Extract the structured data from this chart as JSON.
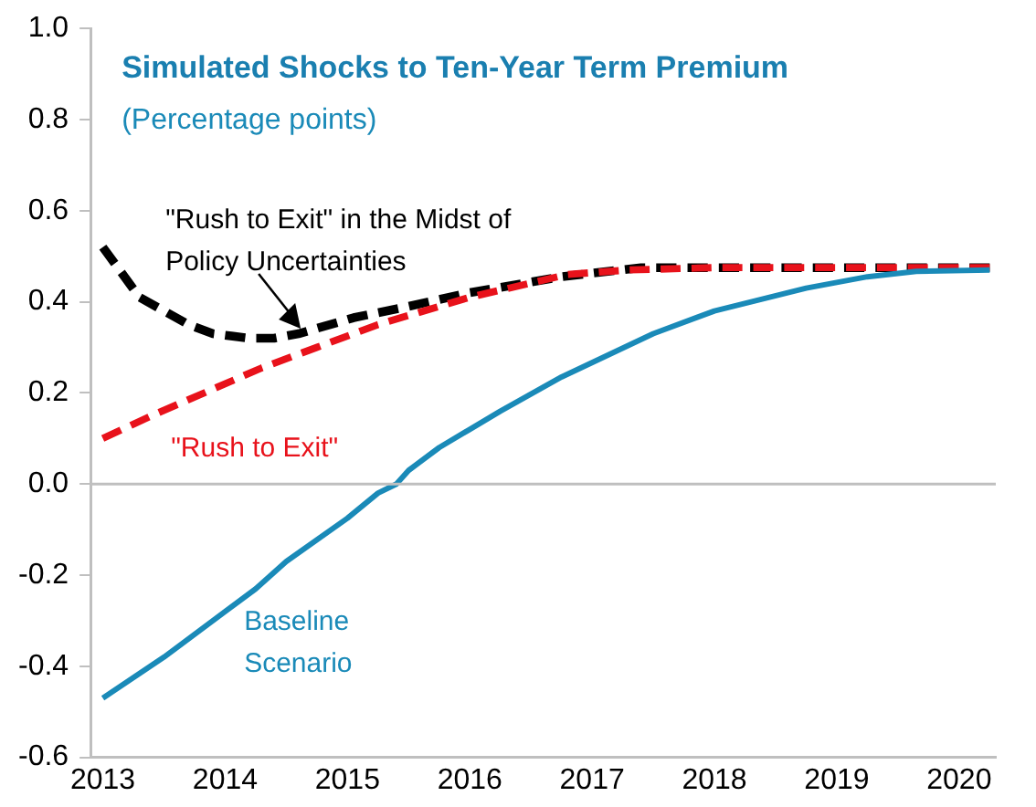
{
  "chart_data": {
    "type": "line",
    "title": "Simulated Shocks to Ten-Year Term Premium",
    "subtitle": "(Percentage points)",
    "xlim": [
      2012.9,
      2020.3
    ],
    "xticks": [
      2013,
      2014,
      2015,
      2016,
      2017,
      2018,
      2019,
      2020
    ],
    "ylim": [
      -0.6,
      1.0
    ],
    "yticks": [
      {
        "value": -0.6,
        "label": "-0.6"
      },
      {
        "value": -0.4,
        "label": "-0.4"
      },
      {
        "value": -0.2,
        "label": "-0.2"
      },
      {
        "value": 0,
        "label": "0.0"
      },
      {
        "value": 0.2,
        "label": "0.2"
      },
      {
        "value": 0.4,
        "label": "0.4"
      },
      {
        "value": 0.6,
        "label": "0.6"
      },
      {
        "value": 0.8,
        "label": "0.8"
      },
      {
        "value": 1.0,
        "label": "1.0"
      }
    ],
    "grid": false,
    "legend": false,
    "marker": "none",
    "ref_lines": [
      {
        "axis": "y",
        "value": 0,
        "color": "#bfbfbf"
      }
    ],
    "series": [
      {
        "name": "Baseline Scenario",
        "color": "#1a8ab8",
        "line_style": "solid",
        "x": [
          2013,
          2013.5,
          2014,
          2014.25,
          2014.5,
          2015,
          2015.25,
          2015.4,
          2015.5,
          2015.75,
          2016,
          2016.25,
          2016.75,
          2017.5,
          2018,
          2018.75,
          2019.25,
          2019.65,
          2020.25
        ],
        "values": [
          -0.47,
          -0.38,
          -0.28,
          -0.23,
          -0.17,
          -0.075,
          -0.02,
          0,
          0.03,
          0.08,
          0.12,
          0.16,
          0.235,
          0.33,
          0.38,
          0.43,
          0.455,
          0.467,
          0.47
        ]
      },
      {
        "name": "\"Rush to Exit\"",
        "color": "#e8121b",
        "line_style": "dashed",
        "x": [
          2013,
          2013.4,
          2014.3,
          2014.75,
          2015.25,
          2016,
          2016.8,
          2017.3,
          2018,
          2020.25
        ],
        "values": [
          0.1,
          0.15,
          0.255,
          0.3,
          0.35,
          0.41,
          0.46,
          0.47,
          0.475,
          0.475
        ]
      },
      {
        "name": "\"Rush to Exit\" in the Midst of Policy Uncertainties",
        "color": "#000000",
        "line_style": "dashed",
        "x": [
          2013,
          2013.3,
          2013.7,
          2013.9,
          2014.2,
          2014.4,
          2014.6,
          2015.05,
          2015.5,
          2016,
          2016.75,
          2017.4,
          2020.25
        ],
        "values": [
          0.52,
          0.41,
          0.35,
          0.33,
          0.32,
          0.32,
          0.33,
          0.365,
          0.39,
          0.42,
          0.455,
          0.475,
          0.475
        ]
      }
    ]
  }
}
